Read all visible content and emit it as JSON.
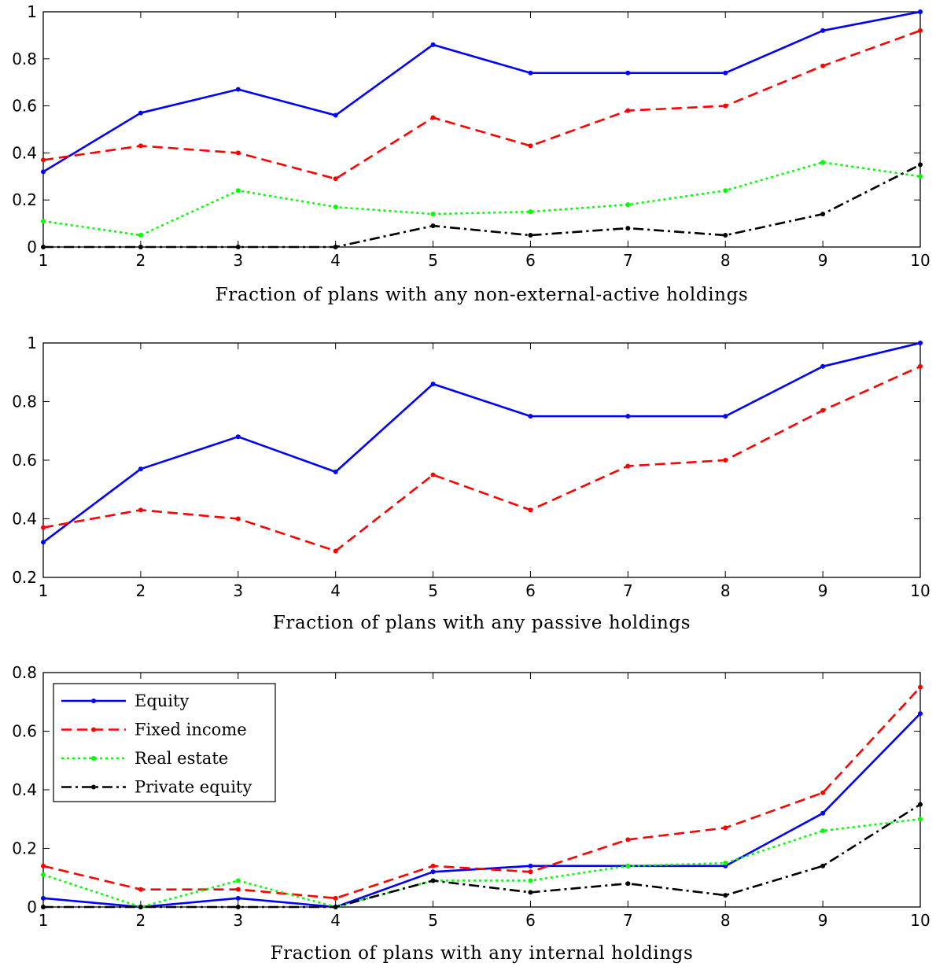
{
  "chart_data": [
    {
      "type": "line",
      "x": [
        1,
        2,
        3,
        4,
        5,
        6,
        7,
        8,
        9,
        10
      ],
      "xlabel": "Fraction of plans with any non-external-active holdings",
      "ylabel": "",
      "xlim": [
        1,
        10
      ],
      "ylim": [
        0,
        1
      ],
      "yticks": [
        0,
        0.2,
        0.4,
        0.6,
        0.8,
        1
      ],
      "ytick_labels": [
        "0",
        "0.2",
        "0.4",
        "0.6",
        "0.8",
        "1"
      ],
      "xtick_labels": [
        "1",
        "2",
        "3",
        "4",
        "5",
        "6",
        "7",
        "8",
        "9",
        "10"
      ],
      "grid": false,
      "series": [
        {
          "name": "Equity",
          "color": "#0000ff",
          "style": "solid",
          "values": [
            0.32,
            0.57,
            0.67,
            0.56,
            0.86,
            0.74,
            0.74,
            0.74,
            0.92,
            1.0
          ]
        },
        {
          "name": "Fixed income",
          "color": "#ff0000",
          "style": "dashed",
          "values": [
            0.37,
            0.43,
            0.4,
            0.29,
            0.55,
            0.43,
            0.58,
            0.6,
            0.77,
            0.92
          ]
        },
        {
          "name": "Real estate",
          "color": "#00ff00",
          "style": "dotted",
          "values": [
            0.11,
            0.05,
            0.24,
            0.17,
            0.14,
            0.15,
            0.18,
            0.24,
            0.36,
            0.3
          ]
        },
        {
          "name": "Private equity",
          "color": "#000000",
          "style": "dashdot",
          "values": [
            0.0,
            0.0,
            0.0,
            0.0,
            0.09,
            0.05,
            0.08,
            0.05,
            0.14,
            0.35
          ]
        }
      ]
    },
    {
      "type": "line",
      "x": [
        1,
        2,
        3,
        4,
        5,
        6,
        7,
        8,
        9,
        10
      ],
      "xlabel": "Fraction of plans with any passive holdings",
      "ylabel": "",
      "xlim": [
        1,
        10
      ],
      "ylim": [
        0.2,
        1
      ],
      "yticks": [
        0.2,
        0.4,
        0.6,
        0.8,
        1
      ],
      "ytick_labels": [
        "0.2",
        "0.4",
        "0.6",
        "0.8",
        "1"
      ],
      "xtick_labels": [
        "1",
        "2",
        "3",
        "4",
        "5",
        "6",
        "7",
        "8",
        "9",
        "10"
      ],
      "grid": false,
      "series": [
        {
          "name": "Equity",
          "color": "#0000ff",
          "style": "solid",
          "values": [
            0.32,
            0.57,
            0.68,
            0.56,
            0.86,
            0.75,
            0.75,
            0.75,
            0.92,
            1.0
          ]
        },
        {
          "name": "Fixed income",
          "color": "#ff0000",
          "style": "dashed",
          "values": [
            0.37,
            0.43,
            0.4,
            0.29,
            0.55,
            0.43,
            0.58,
            0.6,
            0.77,
            0.92
          ]
        }
      ]
    },
    {
      "type": "line",
      "x": [
        1,
        2,
        3,
        4,
        5,
        6,
        7,
        8,
        9,
        10
      ],
      "xlabel": "Fraction of plans with any internal holdings",
      "ylabel": "",
      "xlim": [
        1,
        10
      ],
      "ylim": [
        0,
        0.8
      ],
      "yticks": [
        0,
        0.2,
        0.4,
        0.6,
        0.8
      ],
      "ytick_labels": [
        "0",
        "0.2",
        "0.4",
        "0.6",
        "0.8"
      ],
      "xtick_labels": [
        "1",
        "2",
        "3",
        "4",
        "5",
        "6",
        "7",
        "8",
        "9",
        "10"
      ],
      "grid": false,
      "legend": "top-left",
      "series": [
        {
          "name": "Equity",
          "color": "#0000ff",
          "style": "solid",
          "values": [
            0.03,
            0.0,
            0.03,
            0.0,
            0.12,
            0.14,
            0.14,
            0.14,
            0.32,
            0.66
          ]
        },
        {
          "name": "Fixed income",
          "color": "#ff0000",
          "style": "dashed",
          "values": [
            0.14,
            0.06,
            0.06,
            0.03,
            0.14,
            0.12,
            0.23,
            0.27,
            0.39,
            0.75
          ]
        },
        {
          "name": "Real estate",
          "color": "#00ff00",
          "style": "dotted",
          "values": [
            0.11,
            0.0,
            0.09,
            0.0,
            0.09,
            0.09,
            0.14,
            0.15,
            0.26,
            0.3
          ]
        },
        {
          "name": "Private equity",
          "color": "#000000",
          "style": "dashdot",
          "values": [
            0.0,
            0.0,
            0.0,
            0.0,
            0.09,
            0.05,
            0.08,
            0.04,
            0.14,
            0.35
          ]
        }
      ]
    }
  ]
}
